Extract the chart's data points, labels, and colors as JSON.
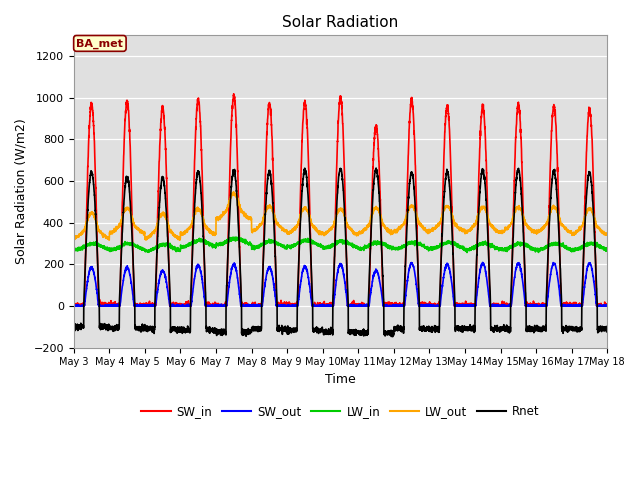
{
  "title": "Solar Radiation",
  "xlabel": "Time",
  "ylabel": "Solar Radiation (W/m2)",
  "ylim": [
    -200,
    1300
  ],
  "yticks": [
    -200,
    0,
    200,
    400,
    600,
    800,
    1000,
    1200
  ],
  "annotation": "BA_met",
  "annotation_color": "#8B0000",
  "annotation_bg": "#FFFFCC",
  "plot_bg_color": "#E0E0E0",
  "n_days": 15,
  "start_day": 3,
  "points_per_day": 288,
  "SW_in_peak": [
    970,
    980,
    950,
    990,
    1010,
    970,
    980,
    1000,
    860,
    990,
    960,
    960,
    965,
    960,
    940
  ],
  "SW_out_peak": [
    185,
    185,
    170,
    195,
    200,
    185,
    190,
    200,
    170,
    205,
    200,
    205,
    205,
    205,
    205
  ],
  "LW_in_base": [
    285,
    285,
    280,
    300,
    310,
    295,
    300,
    295,
    290,
    290,
    290,
    285,
    285,
    285,
    285
  ],
  "LW_out_base": [
    355,
    380,
    355,
    375,
    450,
    390,
    380,
    375,
    380,
    390,
    390,
    385,
    385,
    385,
    375
  ],
  "Rnet_peak": [
    640,
    620,
    615,
    645,
    650,
    645,
    655,
    660,
    655,
    640,
    645,
    655,
    655,
    650,
    640
  ],
  "Rnet_night": [
    -100,
    -105,
    -110,
    -115,
    -125,
    -110,
    -115,
    -125,
    -130,
    -110,
    -110,
    -110,
    -110,
    -110,
    -110
  ],
  "series": {
    "SW_in": {
      "color": "#FF0000",
      "lw": 1.2
    },
    "SW_out": {
      "color": "#0000FF",
      "lw": 1.2
    },
    "LW_in": {
      "color": "#00CC00",
      "lw": 1.2
    },
    "LW_out": {
      "color": "#FFA500",
      "lw": 1.2
    },
    "Rnet": {
      "color": "#000000",
      "lw": 1.2
    }
  }
}
